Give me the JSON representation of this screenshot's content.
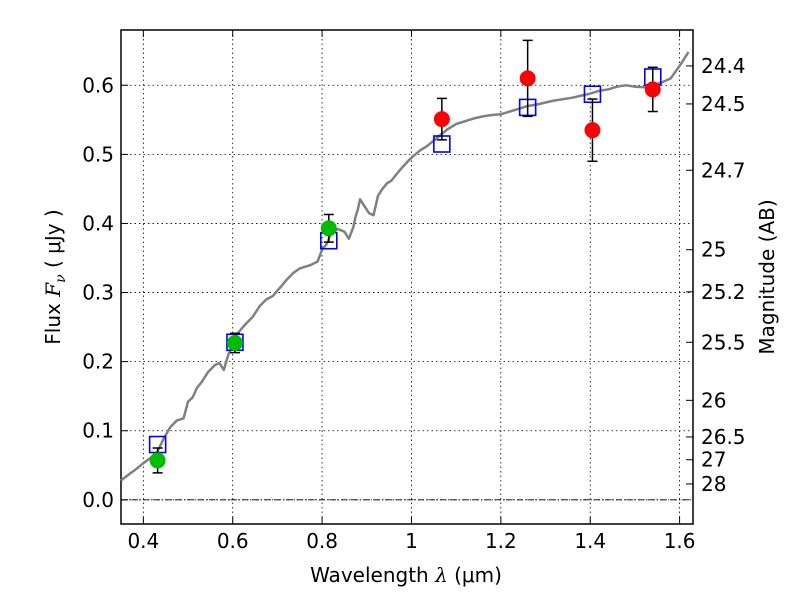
{
  "chart_data": {
    "type": "scatter",
    "xlabel": {
      "text": "Wavelength",
      "symbol": "λ",
      "unit": "(μm)"
    },
    "ylabel": {
      "text": "Flux",
      "symbol": "F",
      "subscript": "ν",
      "unit": "( μJy )"
    },
    "y2label": "Magnitude (AB)",
    "xlim": [
      0.35,
      1.63
    ],
    "ylim": [
      -0.035,
      0.68
    ],
    "grid": true,
    "x_ticks": [
      0.4,
      0.6,
      0.8,
      1.0,
      1.2,
      1.4,
      1.6
    ],
    "x_tick_labels": [
      "0.4",
      "0.6",
      "0.8",
      "1",
      "1.2",
      "1.4",
      "1.6"
    ],
    "y_ticks": [
      0.0,
      0.1,
      0.2,
      0.3,
      0.4,
      0.5,
      0.6
    ],
    "y_tick_labels": [
      "0.0",
      "0.1",
      "0.2",
      "0.3",
      "0.4",
      "0.5",
      "0.6"
    ],
    "y2_ticks": [
      {
        "label": "24.4",
        "flux": 0.628
      },
      {
        "label": "24.5",
        "flux": 0.573
      },
      {
        "label": "24.7",
        "flux": 0.477
      },
      {
        "label": "25",
        "flux": 0.362
      },
      {
        "label": "25.2",
        "flux": 0.301
      },
      {
        "label": "25.5",
        "flux": 0.228
      },
      {
        "label": "26",
        "flux": 0.144
      },
      {
        "label": "26.5",
        "flux": 0.091
      },
      {
        "label": "27",
        "flux": 0.058
      },
      {
        "label": "28",
        "flux": 0.023
      }
    ],
    "series": [
      {
        "kind": "line",
        "color": "#808080",
        "x": [
          0.35,
          0.37,
          0.385,
          0.4,
          0.415,
          0.43,
          0.445,
          0.46,
          0.475,
          0.49,
          0.5,
          0.51,
          0.52,
          0.53,
          0.545,
          0.56,
          0.57,
          0.58,
          0.59,
          0.6,
          0.61,
          0.62,
          0.63,
          0.645,
          0.66,
          0.675,
          0.69,
          0.7,
          0.71,
          0.72,
          0.735,
          0.75,
          0.765,
          0.775,
          0.79,
          0.8,
          0.81,
          0.82,
          0.835,
          0.85,
          0.86,
          0.87,
          0.875,
          0.88,
          0.885,
          0.895,
          0.905,
          0.915,
          0.925,
          0.935,
          0.945,
          0.955,
          0.965,
          0.975,
          0.985,
          0.995,
          1.005,
          1.02,
          1.035,
          1.05,
          1.065,
          1.08,
          1.1,
          1.12,
          1.14,
          1.16,
          1.18,
          1.2,
          1.22,
          1.24,
          1.26,
          1.28,
          1.3,
          1.32,
          1.34,
          1.36,
          1.38,
          1.4,
          1.42,
          1.44,
          1.46,
          1.48,
          1.5,
          1.52,
          1.54,
          1.56,
          1.58,
          1.6,
          1.62
        ],
        "y": [
          0.028,
          0.038,
          0.045,
          0.053,
          0.06,
          0.068,
          0.088,
          0.105,
          0.115,
          0.118,
          0.142,
          0.148,
          0.162,
          0.17,
          0.185,
          0.195,
          0.198,
          0.188,
          0.21,
          0.225,
          0.24,
          0.248,
          0.255,
          0.265,
          0.28,
          0.29,
          0.295,
          0.303,
          0.31,
          0.318,
          0.328,
          0.335,
          0.338,
          0.34,
          0.345,
          0.362,
          0.37,
          0.385,
          0.392,
          0.388,
          0.378,
          0.395,
          0.41,
          0.42,
          0.435,
          0.425,
          0.415,
          0.412,
          0.44,
          0.45,
          0.458,
          0.462,
          0.47,
          0.478,
          0.485,
          0.492,
          0.498,
          0.506,
          0.512,
          0.52,
          0.528,
          0.536,
          0.544,
          0.548,
          0.552,
          0.555,
          0.557,
          0.558,
          0.562,
          0.566,
          0.57,
          0.572,
          0.575,
          0.578,
          0.58,
          0.582,
          0.585,
          0.588,
          0.592,
          0.594,
          0.598,
          0.6,
          0.598,
          0.597,
          0.6,
          0.604,
          0.61,
          0.628,
          0.648
        ]
      },
      {
        "kind": "squares",
        "color": "#0000ff",
        "x": [
          0.432,
          0.605,
          0.815,
          1.068,
          1.26,
          1.405,
          1.54
        ],
        "y": [
          0.08,
          0.228,
          0.375,
          0.515,
          0.568,
          0.587,
          0.612
        ]
      },
      {
        "kind": "points",
        "color": "#00bb00",
        "x": [
          0.432,
          0.605,
          0.815
        ],
        "y": [
          0.057,
          0.227,
          0.393
        ],
        "yerr_low": [
          0.018,
          0.014,
          0.02
        ],
        "yerr_high": [
          0.018,
          0.014,
          0.02
        ]
      },
      {
        "kind": "points",
        "color": "#ff0000",
        "x": [
          1.068,
          1.26,
          1.405,
          1.54
        ],
        "y": [
          0.551,
          0.61,
          0.535,
          0.594
        ],
        "yerr_low": [
          0.03,
          0.055,
          0.045,
          0.032
        ],
        "yerr_high": [
          0.03,
          0.055,
          0.045,
          0.032
        ]
      }
    ]
  }
}
